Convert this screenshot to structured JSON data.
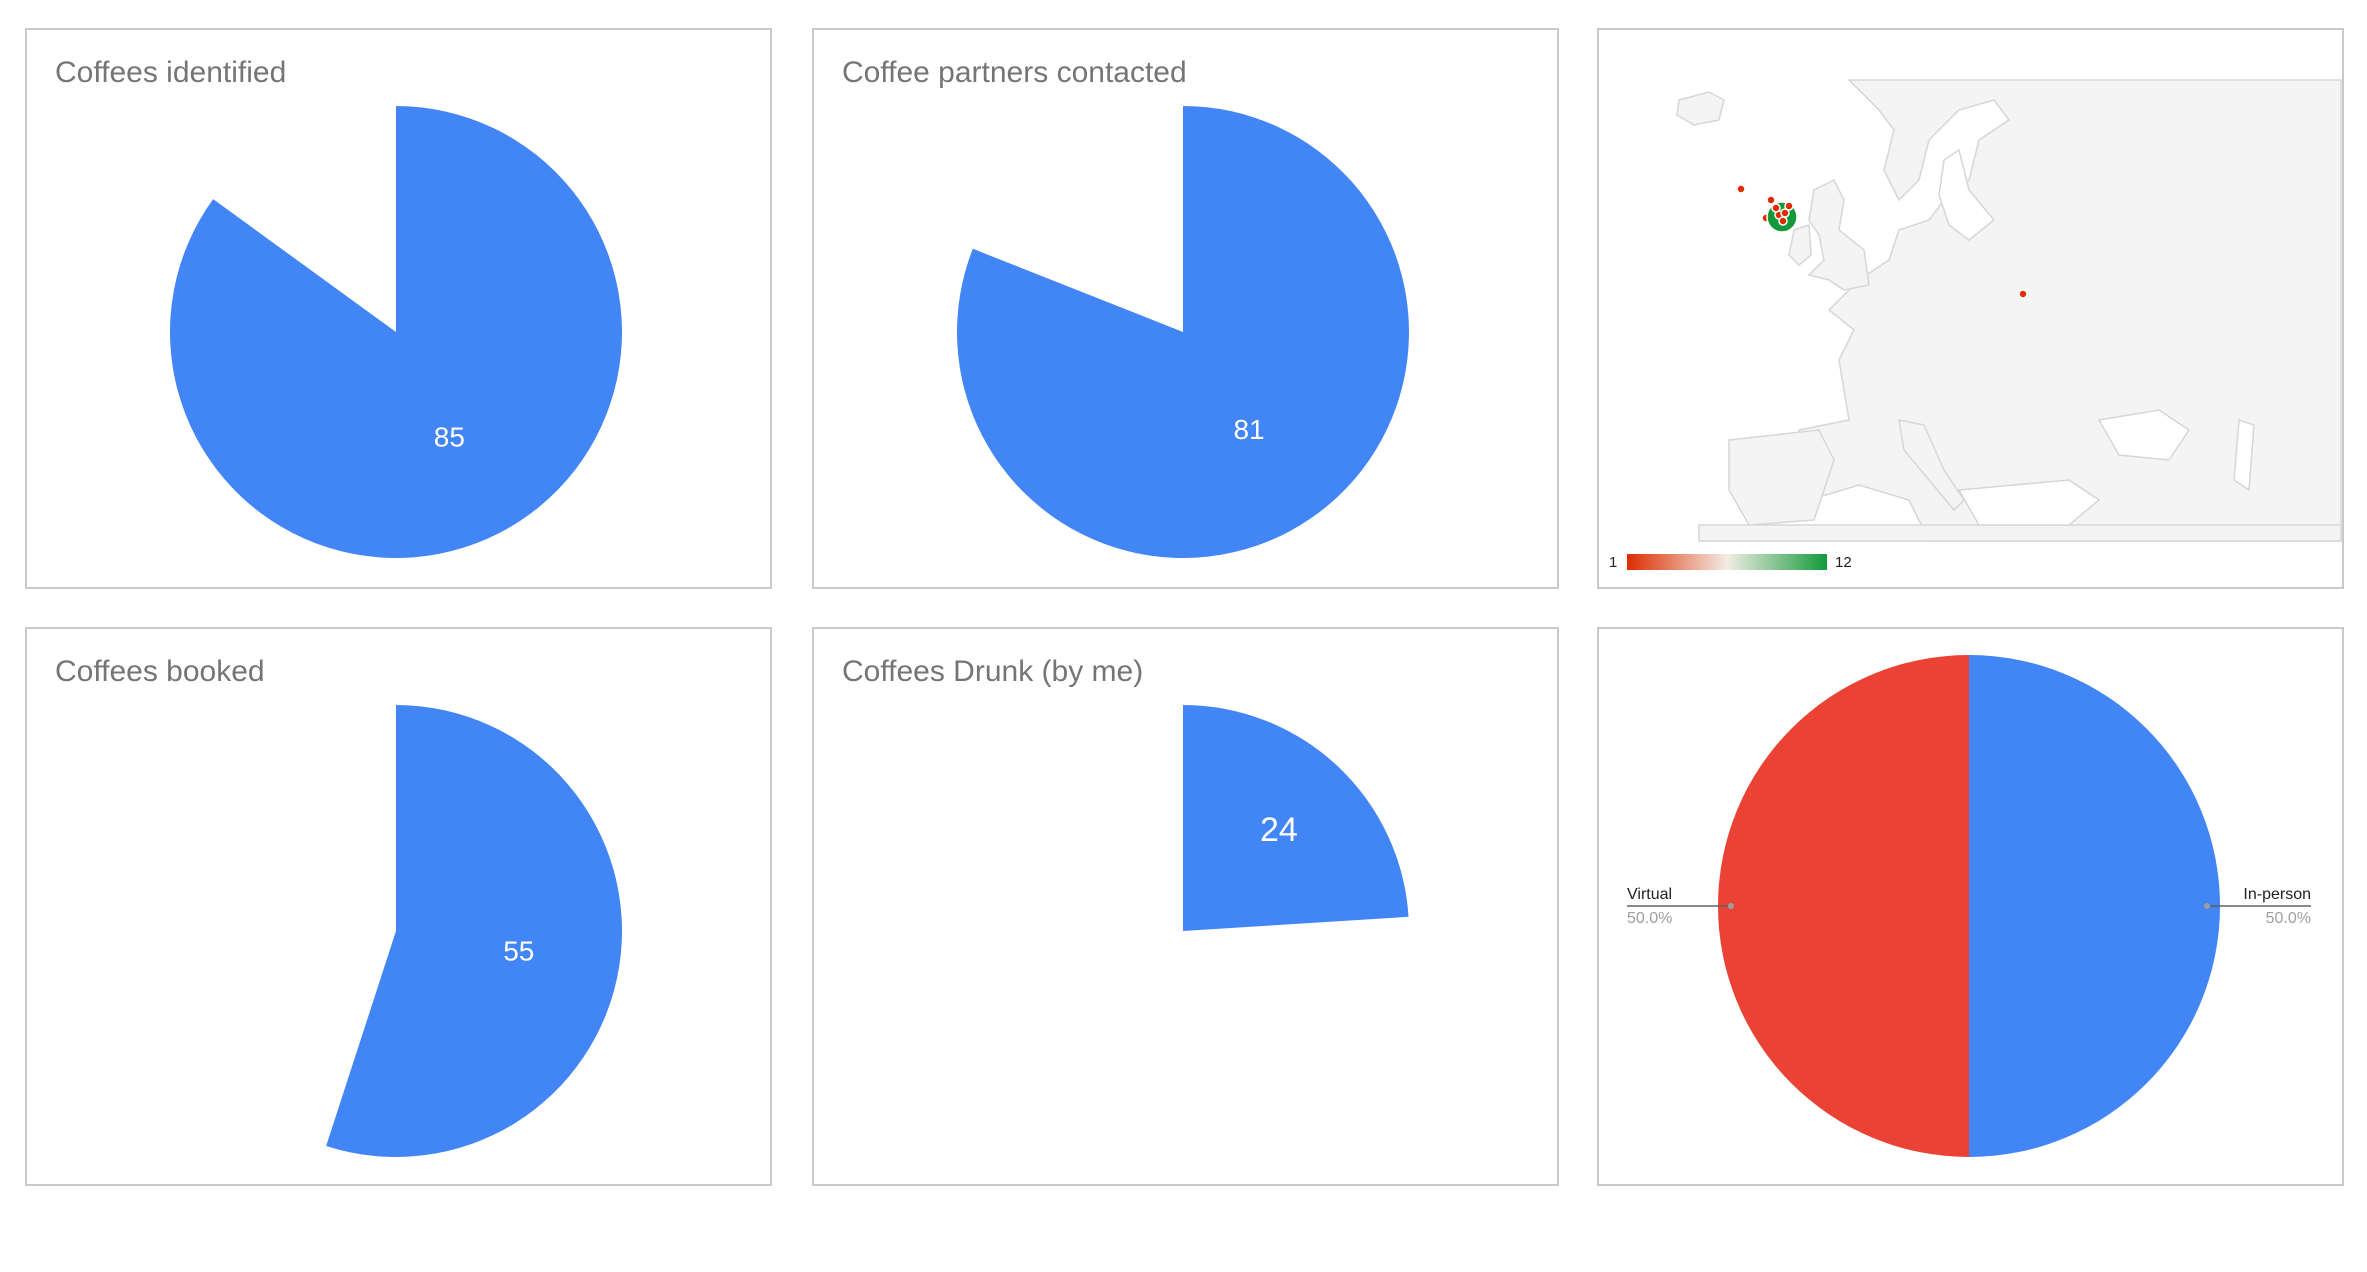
{
  "colors": {
    "series_blue": "#4285f4",
    "series_red": "#ea4335",
    "map_land": "#f5f5f5",
    "map_ocean": "#ffffff",
    "map_border": "#d6d6d6",
    "map_marker_low": "#dd2c00",
    "map_marker_high": "#129a3a",
    "panel_border": "#c9c9c9",
    "title_text": "#757575"
  },
  "chart_data": [
    {
      "type": "pie",
      "title": "Coffees identified",
      "start_angle_deg": 0,
      "slices": [
        {
          "value": 85,
          "label": "85",
          "fraction": 0.85,
          "color": "#4285f4"
        }
      ]
    },
    {
      "type": "pie",
      "title": "Coffee partners contacted",
      "start_angle_deg": 0,
      "slices": [
        {
          "value": 81,
          "label": "81",
          "fraction": 0.81,
          "color": "#4285f4"
        }
      ]
    },
    {
      "type": "geo",
      "title": "",
      "region": "Europe",
      "color_axis": {
        "min": 1,
        "max": 12,
        "min_label": "1",
        "max_label": "12",
        "colors": [
          "#dd2c00",
          "#ffffff",
          "#129a3a"
        ]
      },
      "markers": [
        {
          "place": "Ireland",
          "value": 1
        },
        {
          "place": "Northern England",
          "value": 1
        },
        {
          "place": "Wales",
          "value": 1
        },
        {
          "place": "London area",
          "value": 12
        },
        {
          "place": "Southern England",
          "value": 1
        },
        {
          "place": "Netherlands",
          "value": 1
        },
        {
          "place": "Armenia",
          "value": 1
        }
      ]
    },
    {
      "type": "pie",
      "title": "Coffees booked",
      "start_angle_deg": 0,
      "slices": [
        {
          "value": 55,
          "label": "55",
          "fraction": 0.55,
          "color": "#4285f4"
        }
      ]
    },
    {
      "type": "pie",
      "title": "Coffees Drunk (by me)",
      "start_angle_deg": 0,
      "slices": [
        {
          "value": 24,
          "label": "24",
          "fraction": 0.24,
          "color": "#4285f4"
        }
      ]
    },
    {
      "type": "pie",
      "title": "",
      "legend": "labeled",
      "slices": [
        {
          "name": "In-person",
          "percent_label": "50.0%",
          "value": 50.0,
          "color": "#4285f4"
        },
        {
          "name": "Virtual",
          "percent_label": "50.0%",
          "value": 50.0,
          "color": "#ea4335"
        }
      ]
    }
  ]
}
